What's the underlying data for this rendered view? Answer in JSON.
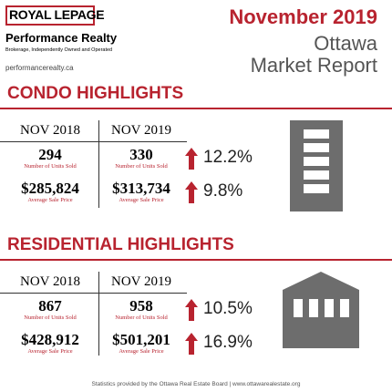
{
  "logo": {
    "brand": "ROYAL LEPAGE",
    "office": "Performance Realty",
    "tagline": "Brokerage, Independently Owned and Operated",
    "website": "performancerealty.ca"
  },
  "header": {
    "title": "November 2019",
    "city": "Ottawa",
    "subtitle": "Market Report"
  },
  "sections": [
    {
      "title": "CONDO HIGHLIGHTS",
      "columns": [
        "NOV 2018",
        "NOV 2019"
      ],
      "rows": [
        {
          "values": [
            "294",
            "330"
          ],
          "label": "Number of Units Sold",
          "change": "12.2%"
        },
        {
          "values": [
            "$285,824",
            "$313,734"
          ],
          "label": "Average Sale Price",
          "change": "9.8%"
        }
      ]
    },
    {
      "title": "RESIDENTIAL HIGHLIGHTS",
      "columns": [
        "NOV 2018",
        "NOV 2019"
      ],
      "rows": [
        {
          "values": [
            "867",
            "958"
          ],
          "label": "Number of Units Sold",
          "change": "10.5%"
        },
        {
          "values": [
            "$428,912",
            "$501,201"
          ],
          "label": "Average Sale Price",
          "change": "16.9%"
        }
      ]
    }
  ],
  "footer": "Statistics provided by the Ottawa Real Estate Board | www.ottawarealestate.org"
}
